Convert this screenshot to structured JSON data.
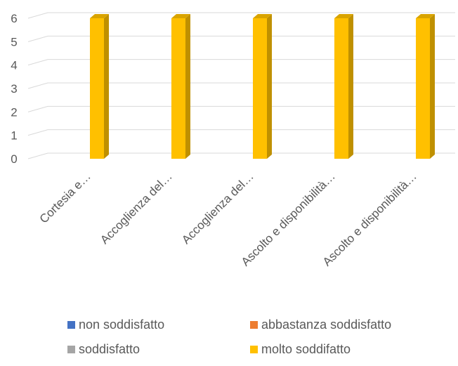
{
  "chart_data": {
    "type": "bar",
    "categories": [
      "Cortesia e…",
      "Accoglienza del…",
      "Accoglienza del…",
      "Ascolto e disponibilità…",
      "Ascolto e disponibilità…"
    ],
    "series": [
      {
        "name": "non soddisfatto",
        "color": "#4472C4",
        "values": [
          0,
          0,
          0,
          0,
          0
        ]
      },
      {
        "name": "abbastanza soddisfatto",
        "color": "#ED7D31",
        "values": [
          0,
          0,
          0,
          0,
          0
        ]
      },
      {
        "name": "soddisfatto",
        "color": "#A5A5A5",
        "values": [
          0,
          0,
          0,
          0,
          0
        ]
      },
      {
        "name": "molto soddifatto",
        "color": "#FFC000",
        "values": [
          6,
          6,
          6,
          6,
          6
        ]
      }
    ],
    "ylim": [
      0,
      6
    ],
    "yticks": [
      "0",
      "1",
      "2",
      "3",
      "4",
      "5",
      "6"
    ],
    "grid": true,
    "legend_position": "bottom"
  }
}
